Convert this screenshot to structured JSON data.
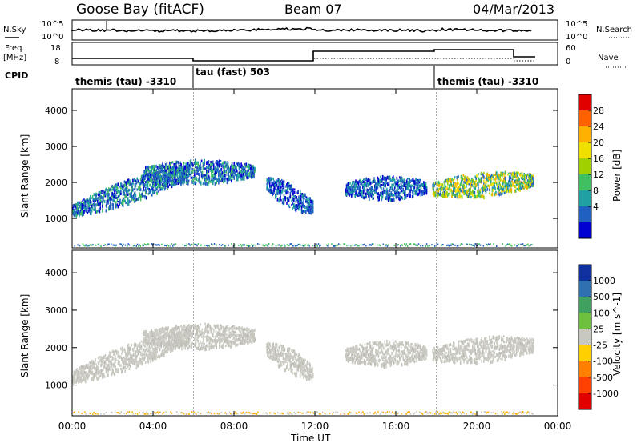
{
  "header": {
    "station": "Goose Bay (fitACF)",
    "beam": "Beam 07",
    "date": "04/Mar/2013"
  },
  "summary_panels": {
    "nsky_label": "N.Sky",
    "nsearch_label": "N.Search",
    "noise_ticks_left": [
      "10^5",
      "10^0"
    ],
    "noise_ticks_right": [
      "10^5",
      "10^0"
    ],
    "freq_label_1": "Freq.",
    "freq_label_2": "[MHz]",
    "freq_ticks": [
      "18",
      "8"
    ],
    "nave_label": "Nave",
    "nave_ticks": [
      "60",
      "0"
    ],
    "cpid_label": "CPID",
    "cpid_segments": [
      {
        "name": "themis (tau) -3310",
        "start_hour": 0,
        "end_hour": 6
      },
      {
        "name": "tau (fast) 503",
        "start_hour": 6,
        "end_hour": 18
      },
      {
        "name": "themis (tau) -3310",
        "start_hour": 18,
        "end_hour": 24
      }
    ]
  },
  "chart_data": [
    {
      "type": "heatmap",
      "title": "Power",
      "ylabel": "Slant Range [km]",
      "xlabel": "Time UT",
      "x_ticks": [
        "00:00",
        "04:00",
        "08:00",
        "12:00",
        "16:00",
        "20:00",
        "00:00"
      ],
      "xlim_hours": [
        0,
        24
      ],
      "y_ticks": [
        "1000",
        "2000",
        "3000",
        "4000"
      ],
      "ylim": [
        180,
        4600
      ],
      "colorbar_label": "Power [dB]",
      "colorbar_ticks": [
        "28",
        "24",
        "20",
        "16",
        "12",
        "8",
        "4"
      ],
      "colorbar_colors": [
        "#e00000",
        "#ff6000",
        "#ffb000",
        "#f0e000",
        "#a0d000",
        "#40c060",
        "#20a0a0",
        "#2060c0",
        "#0000d0"
      ],
      "echo_regions": [
        {
          "t0": 0.0,
          "t1": 5.8,
          "r_start": 1250,
          "r_end": 2350,
          "level": "mid"
        },
        {
          "t0": 3.5,
          "t1": 9.0,
          "r_start": 2300,
          "r_end": 2350,
          "level": "mid"
        },
        {
          "t0": 9.6,
          "t1": 11.9,
          "r_start": 2000,
          "r_end": 1350,
          "level": "low"
        },
        {
          "t0": 13.5,
          "t1": 17.5,
          "r_start": 1850,
          "r_end": 1900,
          "level": "low"
        },
        {
          "t0": 17.8,
          "t1": 22.8,
          "r_start": 1850,
          "r_end": 2100,
          "level": "high"
        }
      ]
    },
    {
      "type": "heatmap",
      "title": "Velocity",
      "ylabel": "Slant Range [km]",
      "xlabel": "Time UT",
      "x_ticks": [
        "00:00",
        "04:00",
        "08:00",
        "12:00",
        "16:00",
        "20:00",
        "00:00"
      ],
      "xlim_hours": [
        0,
        24
      ],
      "y_ticks": [
        "1000",
        "2000",
        "3000",
        "4000"
      ],
      "ylim": [
        180,
        4600
      ],
      "colorbar_label": "Velocity [m s^-1]",
      "colorbar_ticks": [
        "1000",
        "500",
        "100",
        "25",
        "-25",
        "-100",
        "-500",
        "-1000"
      ],
      "colorbar_colors": [
        "#1030a0",
        "#3070b0",
        "#40a060",
        "#70c040",
        "#c8c8c0",
        "#ffd000",
        "#ff8000",
        "#ff4000",
        "#e00000"
      ],
      "echo_regions": [
        {
          "t0": 0.0,
          "t1": 5.8,
          "r_start": 1250,
          "r_end": 2350,
          "level": "ground"
        },
        {
          "t0": 3.5,
          "t1": 9.0,
          "r_start": 2300,
          "r_end": 2350,
          "level": "ground"
        },
        {
          "t0": 9.6,
          "t1": 11.9,
          "r_start": 2000,
          "r_end": 1350,
          "level": "ground"
        },
        {
          "t0": 13.5,
          "t1": 17.5,
          "r_start": 1850,
          "r_end": 1900,
          "level": "ground"
        },
        {
          "t0": 17.8,
          "t1": 22.8,
          "r_start": 1850,
          "r_end": 2100,
          "level": "ground"
        }
      ]
    }
  ]
}
